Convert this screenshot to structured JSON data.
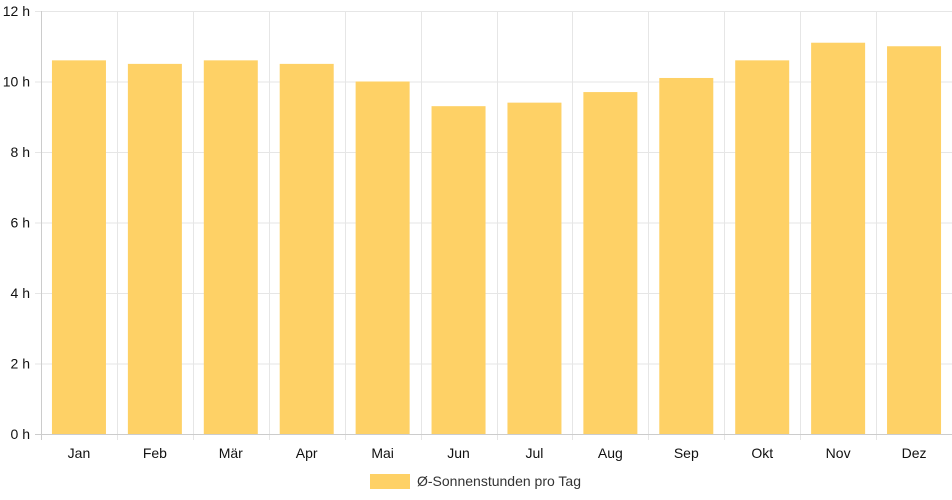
{
  "chart_data": {
    "type": "bar",
    "categories": [
      "Jan",
      "Feb",
      "Mär",
      "Apr",
      "Mai",
      "Jun",
      "Jul",
      "Aug",
      "Sep",
      "Okt",
      "Nov",
      "Dez"
    ],
    "series": [
      {
        "name": "Ø-Sonnenstunden pro Tag",
        "values": [
          10.6,
          10.5,
          10.6,
          10.5,
          10.0,
          9.3,
          9.4,
          9.7,
          10.1,
          10.6,
          11.1,
          11.0
        ],
        "color": "#fed166"
      }
    ],
    "ylim": [
      0,
      12
    ],
    "yticks": [
      0,
      2,
      4,
      6,
      8,
      10,
      12
    ],
    "yunit": "h",
    "grid": true,
    "legend_position": "bottom"
  },
  "colors": {
    "bar": "#fed166",
    "grid": "#e6e6e6",
    "axis": "#cccccc",
    "text": "#111111"
  }
}
